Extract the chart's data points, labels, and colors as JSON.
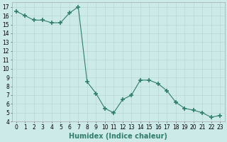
{
  "x": [
    0,
    1,
    2,
    3,
    4,
    5,
    6,
    7,
    8,
    9,
    10,
    11,
    12,
    13,
    14,
    15,
    16,
    17,
    18,
    19,
    20,
    21,
    22,
    23
  ],
  "y": [
    16.5,
    16.0,
    15.5,
    15.5,
    15.2,
    15.2,
    16.3,
    17.0,
    8.5,
    7.2,
    5.5,
    5.0,
    6.5,
    7.0,
    8.7,
    8.7,
    8.3,
    7.5,
    6.2,
    5.5,
    5.3,
    5.0,
    4.5,
    4.7
  ],
  "line_color": "#2e7d6e",
  "marker": "+",
  "marker_size": 4,
  "marker_lw": 1.2,
  "bg_color": "#cceae7",
  "grid_color": "#b8d8d5",
  "xlabel": "Humidex (Indice chaleur)",
  "xlim": [
    -0.5,
    23.5
  ],
  "ylim": [
    4,
    17.5
  ],
  "yticks": [
    4,
    5,
    6,
    7,
    8,
    9,
    10,
    11,
    12,
    13,
    14,
    15,
    16,
    17
  ],
  "xticks": [
    0,
    1,
    2,
    3,
    4,
    5,
    6,
    7,
    8,
    9,
    10,
    11,
    12,
    13,
    14,
    15,
    16,
    17,
    18,
    19,
    20,
    21,
    22,
    23
  ],
  "tick_fontsize": 5.5,
  "xlabel_fontsize": 7,
  "xlabel_fontweight": "bold",
  "linewidth": 0.8
}
